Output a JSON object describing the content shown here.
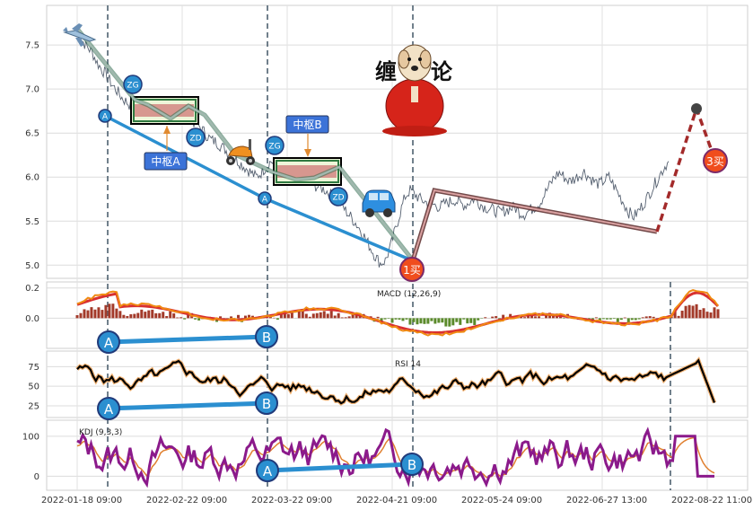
{
  "chart_data": [
    {
      "type": "line",
      "panel": "price",
      "title": "",
      "yticks": [
        5.0,
        5.5,
        6.0,
        6.5,
        7.0,
        7.5
      ],
      "ylim": [
        4.85,
        7.95
      ],
      "grid": true,
      "x_labels": [
        "2022-01-18 09:00",
        "2022-02-22 09:00",
        "2022-03-22 09:00",
        "2022-04-21 09:00",
        "2022-05-24 09:00",
        "2022-06-27 13:00",
        "2022-08-22 11:00"
      ],
      "series": [
        {
          "values": [
            7.62,
            7.55,
            7.48,
            7.42,
            7.3,
            7.22,
            7.15,
            7.05,
            6.98,
            6.9,
            6.85,
            6.8,
            6.78,
            6.82,
            6.76,
            6.7,
            6.74,
            6.78,
            6.72,
            6.68,
            6.72,
            6.75,
            6.7,
            6.65,
            6.6,
            6.55,
            6.48,
            6.42,
            6.4,
            6.35,
            6.3,
            6.25,
            6.2,
            6.15,
            6.1,
            6.05,
            6.0,
            6.05,
            6.12,
            6.18,
            6.15,
            6.1,
            6.05,
            6.08,
            6.12,
            6.05,
            6.0,
            5.95,
            5.9,
            5.88,
            5.85,
            5.8,
            5.75,
            5.7,
            5.62,
            5.55,
            5.48,
            5.4,
            5.3,
            5.2,
            5.1,
            5.02,
            5.05,
            5.2,
            5.4,
            5.6,
            5.78,
            5.85,
            5.8,
            5.75,
            5.72,
            5.7,
            5.68,
            5.66,
            5.7,
            5.72,
            5.74,
            5.7,
            5.68,
            5.72,
            5.76,
            5.7,
            5.66,
            5.64,
            5.62,
            5.6,
            5.62,
            5.64,
            5.66,
            5.6,
            5.58,
            5.62,
            5.66,
            5.7,
            5.8,
            5.9,
            6.0,
            6.05,
            6.0,
            5.95,
            5.98,
            6.02,
            6.06,
            6.0,
            5.95,
            5.92,
            5.96,
            6.0,
            5.9,
            5.8,
            5.7,
            5.6,
            5.55,
            5.62,
            5.7,
            5.8,
            5.9,
            6.0,
            6.1,
            6.18
          ]
        },
        {
          "name": "bi_line",
          "values": [
            7.62,
            6.7,
            6.86,
            6.4,
            6.3,
            6.12,
            5.92,
            5.02,
            5.85,
            5.6,
            5.4,
            6.79,
            6.2
          ]
        },
        {
          "name": "segment_line",
          "values": [
            6.7,
            5.02,
            5.4
          ]
        }
      ],
      "annotations": [
        "ZG",
        "ZD",
        "中枢A",
        "ZG",
        "ZD",
        "中枢B",
        "A",
        "A",
        "1买",
        "3买",
        "缠",
        "论"
      ]
    },
    {
      "type": "bar",
      "panel": "macd",
      "label": "MACD (12,26,9)",
      "yticks": [
        0.0,
        0.2
      ],
      "ylim": [
        -0.2,
        0.24
      ],
      "annotations": [
        "A",
        "B"
      ]
    },
    {
      "type": "line",
      "panel": "rsi",
      "label": "RSI 14",
      "yticks": [
        25,
        50,
        75
      ],
      "ylim": [
        10,
        95
      ],
      "annotations": [
        "A",
        "B"
      ]
    },
    {
      "type": "line",
      "panel": "kdj",
      "label": "KDJ (9,3,3)",
      "yticks": [
        0,
        100
      ],
      "ylim": [
        -35,
        140
      ],
      "annotations": [
        "A",
        "B"
      ]
    }
  ],
  "colors": {
    "grid": "#d8d8d8",
    "price": "#4a5568",
    "bi": "#9aa9b0",
    "segment": "#2b8fd0",
    "zhongshu": "#2f7a40",
    "buy_point": "#f04d1d",
    "macd_dif": "#f08a12",
    "macd_dea": "#d83030",
    "kdj": "#8b1a8b",
    "rsi": "#000000",
    "future": "#a32a2a"
  },
  "icons": [
    "airplane-icon",
    "scooter-icon",
    "car-icon",
    "monk-mascot-icon"
  ]
}
